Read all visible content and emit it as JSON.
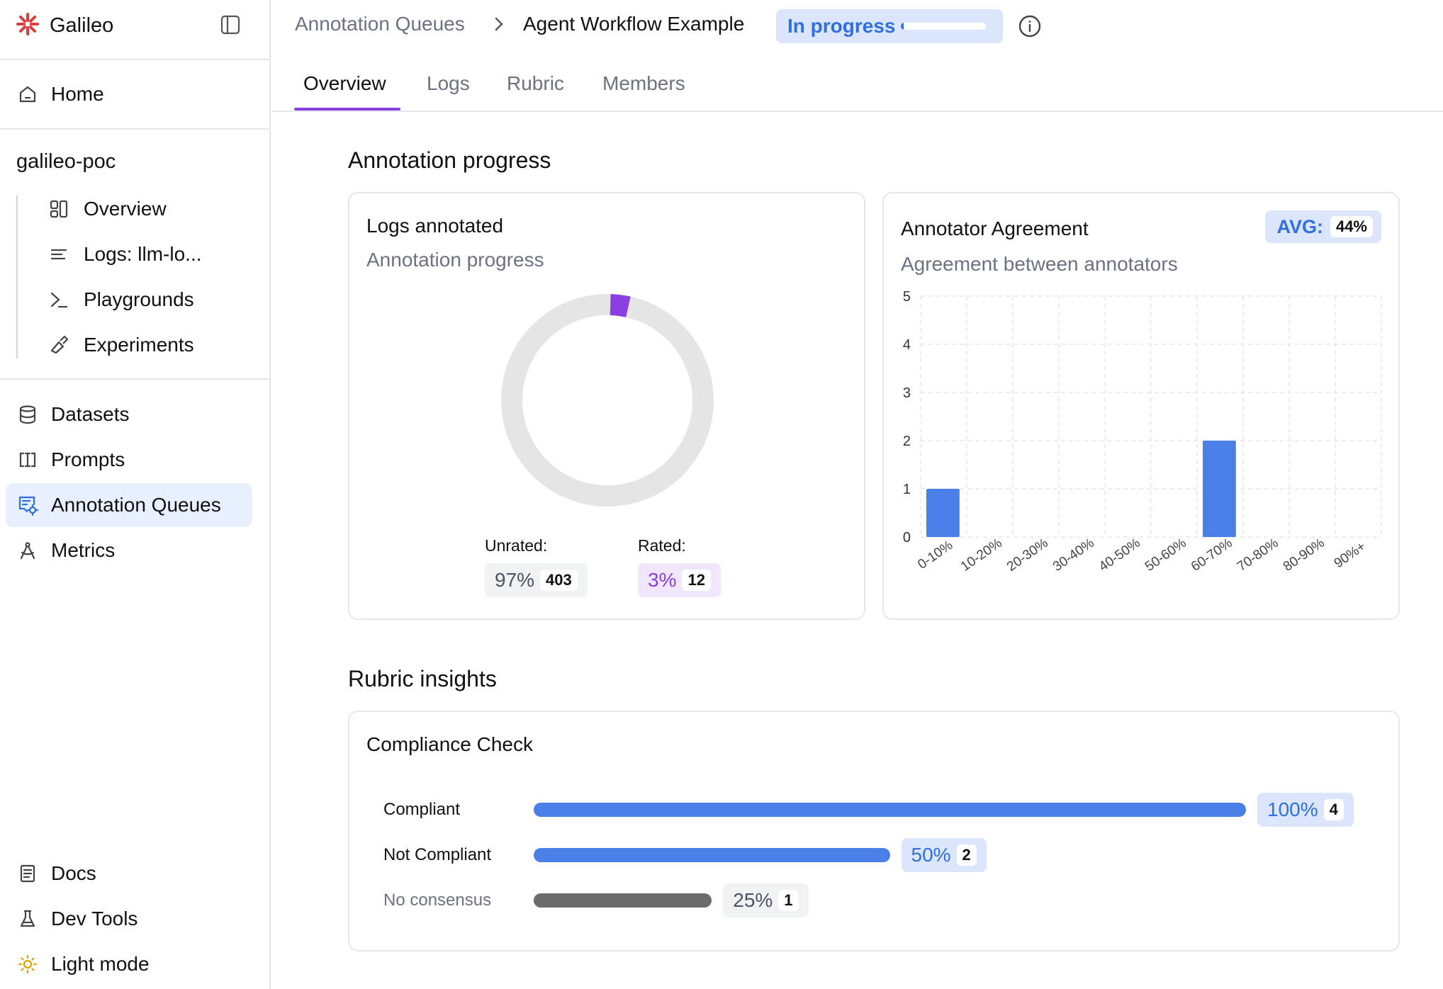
{
  "app": {
    "name": "Galileo",
    "accent": "#e23b3b"
  },
  "sidebar": {
    "home": "Home",
    "project": "galileo-poc",
    "project_items": [
      {
        "label": "Overview",
        "icon": "overview-icon"
      },
      {
        "label": "Logs: llm-lo...",
        "icon": "logs-icon"
      },
      {
        "label": "Playgrounds",
        "icon": "terminal-icon"
      },
      {
        "label": "Experiments",
        "icon": "flask-brush-icon"
      }
    ],
    "items": [
      {
        "label": "Datasets",
        "icon": "database-icon"
      },
      {
        "label": "Prompts",
        "icon": "prompt-icon"
      },
      {
        "label": "Annotation Queues",
        "icon": "annotation-queue-icon",
        "active": true
      },
      {
        "label": "Metrics",
        "icon": "compass-icon"
      }
    ],
    "footer": [
      {
        "label": "Docs",
        "icon": "book-icon"
      },
      {
        "label": "Dev Tools",
        "icon": "beaker-icon"
      },
      {
        "label": "Light mode",
        "icon": "sun-icon"
      }
    ]
  },
  "header": {
    "breadcrumb_root": "Annotation Queues",
    "breadcrumb_current": "Agent Workflow Example",
    "status": "In progress",
    "status_progress": 0.03
  },
  "tabs": [
    "Overview",
    "Logs",
    "Rubric",
    "Members"
  ],
  "annotation_progress": {
    "title": "Annotation progress",
    "logs_card": {
      "title": "Logs annotated",
      "subtitle": "Annotation progress",
      "unrated_label": "Unrated:",
      "unrated_pct": "97%",
      "unrated_count": "403",
      "rated_label": "Rated:",
      "rated_pct": "3%",
      "rated_count": "12",
      "rated_fraction": 0.03
    },
    "agreement_card": {
      "title": "Annotator Agreement",
      "subtitle": "Agreement between annotators",
      "avg_label": "AVG:",
      "avg_value": "44%"
    }
  },
  "chart_data": {
    "type": "bar",
    "categories": [
      "0-10%",
      "10-20%",
      "20-30%",
      "30-40%",
      "40-50%",
      "50-60%",
      "60-70%",
      "70-80%",
      "80-90%",
      "90%+"
    ],
    "values": [
      1,
      0,
      0,
      0,
      0,
      0,
      2,
      0,
      0,
      0
    ],
    "ylim": [
      0,
      5
    ],
    "yticks": [
      "0",
      "1",
      "2",
      "3",
      "4",
      "5"
    ],
    "grid": true,
    "color": "#4a7fe8"
  },
  "rubric": {
    "title": "Rubric insights",
    "card_title": "Compliance Check",
    "rows": [
      {
        "label": "Compliant",
        "pct": "100%",
        "count": "4",
        "fraction": 1.0,
        "color": "#4a7fe8"
      },
      {
        "label": "Not Compliant",
        "pct": "50%",
        "count": "2",
        "fraction": 0.5,
        "color": "#4a7fe8"
      },
      {
        "label": "No consensus",
        "pct": "25%",
        "count": "1",
        "fraction": 0.25,
        "color": "#6b6b6b"
      }
    ]
  }
}
